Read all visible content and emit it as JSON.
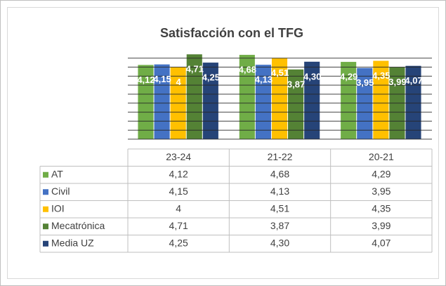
{
  "chart_data": {
    "type": "bar",
    "title": "Satisfacción con el TFG",
    "categories": [
      "23-24",
      "21-22",
      "20-21"
    ],
    "series": [
      {
        "name": "AT",
        "color": "#70ad47",
        "values": [
          4.12,
          4.68,
          4.29
        ],
        "value_labels": [
          "4,12",
          "4,68",
          "4,29"
        ]
      },
      {
        "name": "Civil",
        "color": "#4472c4",
        "values": [
          4.15,
          4.13,
          3.95
        ],
        "value_labels": [
          "4,15",
          "4,13",
          "3,95"
        ]
      },
      {
        "name": "IOI",
        "color": "#ffc000",
        "values": [
          4,
          4.51,
          4.35
        ],
        "value_labels": [
          "4",
          "4,51",
          "4,35"
        ]
      },
      {
        "name": "Mecatrónica",
        "color": "#548235",
        "values": [
          4.71,
          3.87,
          3.99
        ],
        "value_labels": [
          "4,71",
          "3,87",
          "3,99"
        ]
      },
      {
        "name": "Media UZ",
        "color": "#264478",
        "values": [
          4.25,
          4.3,
          4.07
        ],
        "value_labels": [
          "4,25",
          "4,30",
          "4,07"
        ]
      }
    ],
    "ylim": [
      0,
      4.8
    ],
    "yticks": [
      0,
      0.5,
      1,
      1.5,
      2,
      2.5,
      3,
      3.5,
      4,
      4.5
    ],
    "grid": true
  }
}
